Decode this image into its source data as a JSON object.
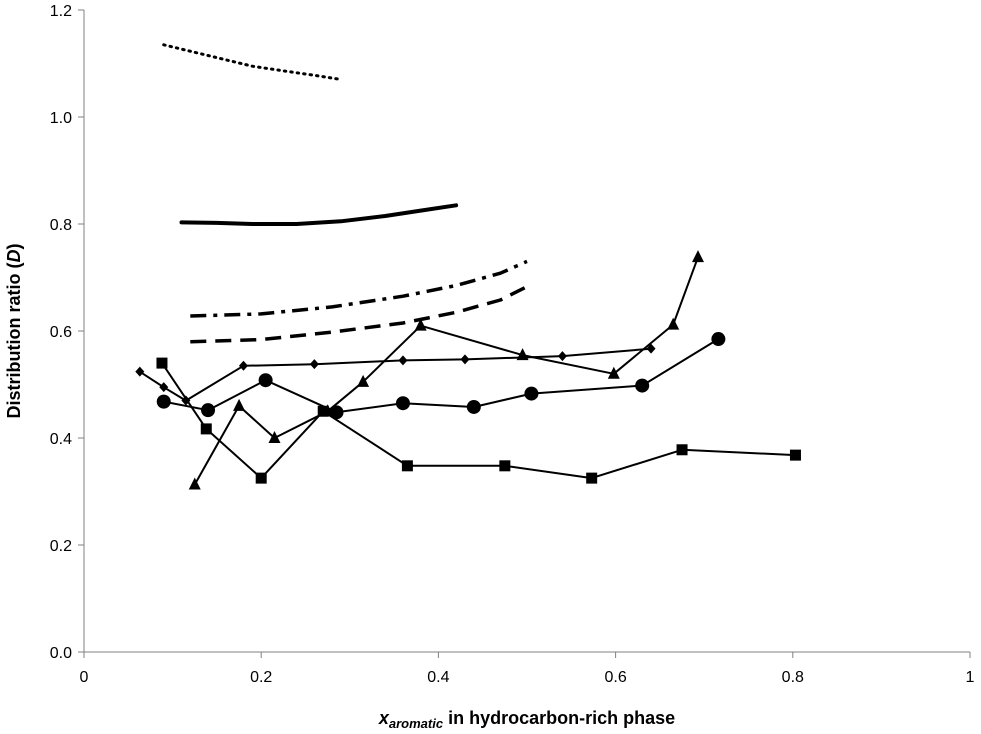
{
  "chart_data": {
    "type": "line",
    "xlabel_parts": {
      "var": "x",
      "sub": "aromatic",
      "rest": " in hydrocarbon-rich phase"
    },
    "ylabel_parts": {
      "pre": "Distribution ratio (",
      "ital": "D",
      "post": ")"
    },
    "xlim": [
      0,
      1
    ],
    "ylim": [
      0,
      1.2
    ],
    "x_ticks": [
      0,
      0.2,
      0.4,
      0.6,
      0.8,
      1
    ],
    "x_tick_labels": [
      "0",
      "0.2",
      "0.4",
      "0.6",
      "0.8",
      "1"
    ],
    "y_ticks": [
      0,
      0.2,
      0.4,
      0.6,
      0.8,
      1.0,
      1.2
    ],
    "y_tick_labels": [
      "0.0",
      "0.2",
      "0.4",
      "0.6",
      "0.8",
      "1.0",
      "1.2"
    ],
    "grid": false,
    "legend": false,
    "series": [
      {
        "style": "dotted",
        "marker": "none",
        "x": [
          0.09,
          0.14,
          0.19,
          0.23,
          0.26,
          0.29
        ],
        "y": [
          1.135,
          1.115,
          1.095,
          1.085,
          1.078,
          1.07
        ]
      },
      {
        "style": "solid-thick",
        "marker": "none",
        "x": [
          0.11,
          0.15,
          0.19,
          0.24,
          0.29,
          0.34,
          0.38,
          0.42
        ],
        "y": [
          0.803,
          0.802,
          0.8,
          0.8,
          0.805,
          0.815,
          0.825,
          0.835
        ]
      },
      {
        "style": "dashdot",
        "marker": "none",
        "x": [
          0.12,
          0.2,
          0.28,
          0.36,
          0.42,
          0.47,
          0.5
        ],
        "y": [
          0.628,
          0.632,
          0.645,
          0.665,
          0.685,
          0.708,
          0.73
        ]
      },
      {
        "style": "dashed",
        "marker": "none",
        "x": [
          0.12,
          0.2,
          0.28,
          0.36,
          0.42,
          0.47,
          0.5
        ],
        "y": [
          0.58,
          0.584,
          0.598,
          0.615,
          0.635,
          0.658,
          0.683
        ]
      },
      {
        "style": "solid",
        "marker": "diamond",
        "x": [
          0.063,
          0.09,
          0.115,
          0.18,
          0.26,
          0.36,
          0.43,
          0.54,
          0.64
        ],
        "y": [
          0.524,
          0.495,
          0.47,
          0.535,
          0.538,
          0.545,
          0.547,
          0.553,
          0.567
        ]
      },
      {
        "style": "solid",
        "marker": "triangle",
        "x": [
          0.125,
          0.175,
          0.215,
          0.275,
          0.315,
          0.38,
          0.495,
          0.598,
          0.665,
          0.693
        ],
        "y": [
          0.313,
          0.46,
          0.4,
          0.45,
          0.505,
          0.61,
          0.555,
          0.52,
          0.612,
          0.738
        ]
      },
      {
        "style": "solid",
        "marker": "circle",
        "x": [
          0.09,
          0.14,
          0.205,
          0.285,
          0.36,
          0.44,
          0.505,
          0.63,
          0.716
        ],
        "y": [
          0.468,
          0.452,
          0.508,
          0.448,
          0.465,
          0.458,
          0.483,
          0.498,
          0.585
        ]
      },
      {
        "style": "solid",
        "marker": "square",
        "x": [
          0.088,
          0.138,
          0.2,
          0.27,
          0.365,
          0.475,
          0.573,
          0.675,
          0.803
        ],
        "y": [
          0.54,
          0.417,
          0.325,
          0.45,
          0.348,
          0.348,
          0.325,
          0.378,
          0.368
        ]
      }
    ]
  }
}
